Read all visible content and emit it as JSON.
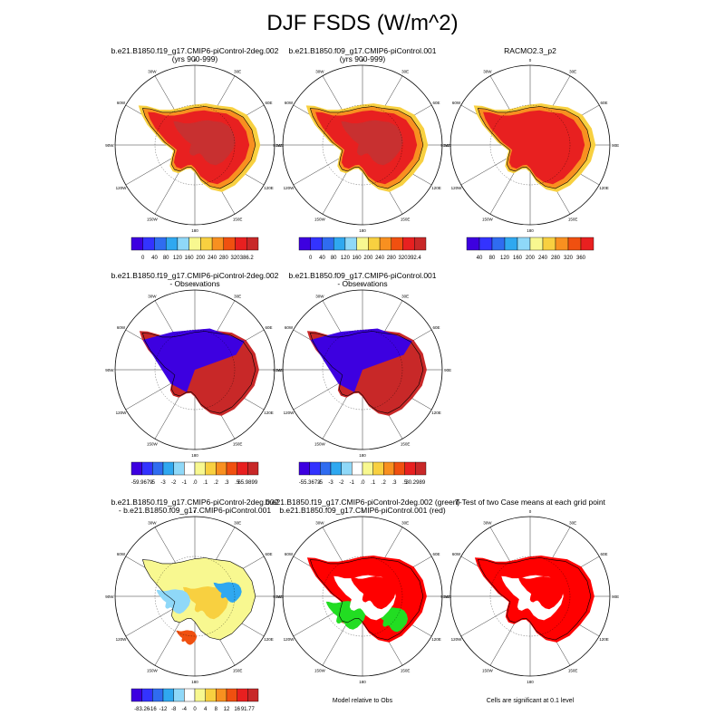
{
  "title": "DJF FSDS (W/m^2)",
  "panels": [
    {
      "id": "p1",
      "title1": "b.e21.B1850.f19_g17.CMIP6-piControl-2deg.002",
      "title2": "(yrs 900-999)",
      "scheme": "abs",
      "colorbar": {
        "min": "0",
        "max": "386.2",
        "labels": [
          "0",
          "40",
          "80",
          "120",
          "160",
          "200",
          "240",
          "280",
          "320",
          "386.2"
        ]
      }
    },
    {
      "id": "p2",
      "title1": "b.e21.B1850.f09_g17.CMIP6-piControl.001",
      "title2": "(yrs 900-999)",
      "scheme": "abs",
      "colorbar": {
        "labels": [
          "0",
          "40",
          "80",
          "120",
          "160",
          "200",
          "240",
          "280",
          "320",
          "392.4"
        ]
      }
    },
    {
      "id": "p3",
      "title1": "RACMO2.3_p2",
      "title2": "",
      "scheme": "abs3",
      "colorbar": {
        "labels": [
          "40",
          "80",
          "120",
          "160",
          "200",
          "240",
          "280",
          "320",
          "360"
        ]
      }
    },
    {
      "id": "p4",
      "title1": "b.e21.B1850.f19_g17.CMIP6-piControl-2deg.002",
      "title2": "- Observations",
      "scheme": "diff",
      "colorbar": {
        "labels": [
          "-59.9679",
          "-5",
          "-3",
          "-2",
          "-1",
          ".0",
          ".1",
          ".2",
          ".3",
          ".5",
          "65.9899"
        ]
      }
    },
    {
      "id": "p5",
      "title1": "b.e21.B1850.f09_g17.CMIP6-piControl.001",
      "title2": "- Observations",
      "scheme": "diff",
      "colorbar": {
        "labels": [
          "-55.3673",
          "-5",
          "-3",
          "-2",
          "-1",
          ".0",
          ".1",
          ".2",
          ".3",
          ".5",
          "30.2989"
        ]
      }
    },
    {
      "id": "p6",
      "title1": "b.e21.B1850.f19_g17.CMIP6-piControl-2deg.002",
      "title2": "- b.e21.B1850.f09_g17.CMIP6-piControl.001",
      "scheme": "cdiff",
      "colorbar": {
        "labels": [
          "-83.26",
          "-16",
          "-12",
          "-8",
          "-4",
          "0",
          "4",
          "8",
          "12",
          "16",
          "91.77"
        ]
      }
    },
    {
      "id": "p7",
      "title1": "b.e21.B1850.f19_g17.CMIP6-piControl-2deg.002 (green)",
      "title2": "b.e21.B1850.f09_g17.CMIP6-piControl.001 (red)",
      "scheme": "rg",
      "note": "Model relative to Obs"
    },
    {
      "id": "p8",
      "title1": "T-Test of two Case means at each grid point",
      "title2": "",
      "scheme": "ttest",
      "note": "Cells are significant at 0.1 level"
    }
  ],
  "longitude_labels": [
    "0",
    "30E",
    "60E",
    "90E",
    "120E",
    "150E",
    "180",
    "150W",
    "120W",
    "90W",
    "60W",
    "30W"
  ],
  "colors": {
    "abs": [
      "#3d00e0",
      "#3333ff",
      "#2f6cf0",
      "#2fa8f0",
      "#8fd8f8",
      "#f8f890",
      "#f8d040",
      "#f89020",
      "#f05010",
      "#e82020",
      "#c82828"
    ],
    "abs3": [
      "#3d00e0",
      "#3333ff",
      "#2f6cf0",
      "#2fa8f0",
      "#8fd8f8",
      "#f8f890",
      "#f8d040",
      "#f89020",
      "#f05010",
      "#e82020"
    ],
    "diff": [
      "#3d00e0",
      "#3333ff",
      "#2f6cf0",
      "#2fa8f0",
      "#8fd8f8",
      "#ffffff",
      "#f8f890",
      "#f8d040",
      "#f89020",
      "#f05010",
      "#e82020",
      "#c82828"
    ],
    "cdiff": [
      "#3d00e0",
      "#3333ff",
      "#2f6cf0",
      "#2fa8f0",
      "#8fd8f8",
      "#ffffff",
      "#f8f890",
      "#f8d040",
      "#f89020",
      "#f05010",
      "#e82020",
      "#c82828"
    ]
  }
}
